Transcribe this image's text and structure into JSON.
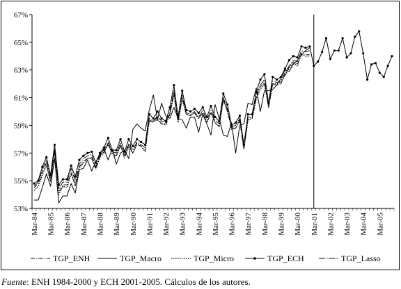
{
  "chart_data": {
    "type": "line",
    "title": "",
    "xlabel": "",
    "ylabel": "",
    "ylim": [
      53,
      67
    ],
    "y_ticks": [
      "53%",
      "55%",
      "57%",
      "59%",
      "61%",
      "63%",
      "65%",
      "67%"
    ],
    "y_tick_values": [
      53,
      55,
      57,
      59,
      61,
      63,
      65,
      67
    ],
    "x_tick_labels": [
      "Mar-84",
      "Mar-85",
      "Mar-86",
      "Mar-87",
      "Mar-88",
      "Mar-89",
      "Mar-90",
      "Mar-91",
      "Mar-92",
      "Mar-93",
      "Mar-94",
      "Mar-95",
      "Mar-96",
      "Mar-97",
      "Mar-98",
      "Mar-99",
      "Mar-00",
      "Mar-01",
      "Mar-02",
      "Mar-03",
      "Mar-04",
      "Mar-05"
    ],
    "x_unit": "quarter",
    "x_start": "Mar-84",
    "n_periods": 88,
    "vertical_marker_at": "Mar-01",
    "grid": false,
    "legend_position": "bottom",
    "legend": [
      "TGP_ENH",
      "TGP_Macro",
      "TGP_Micro",
      "TGP_ECH",
      "TGP_Lasso"
    ],
    "series": [
      {
        "name": "TGP_ENH",
        "line_style": "dash-dot",
        "start_index": 0,
        "values": [
          54.5,
          54.8,
          55.6,
          56.3,
          55.0,
          57.2,
          54.2,
          54.7,
          54.7,
          55.6,
          54.7,
          56.0,
          56.4,
          56.6,
          56.7,
          55.8,
          56.7,
          57.0,
          57.7,
          56.9,
          56.8,
          57.6,
          56.6,
          57.6,
          57.0,
          57.6,
          57.5,
          57.2,
          59.4,
          59.2,
          59.6,
          59.1,
          59.0,
          59.8,
          61.3,
          59.3,
          61.0,
          59.8,
          59.7,
          59.9,
          59.5,
          59.9,
          59.2,
          59.9,
          59.2,
          58.9,
          60.9,
          60.1,
          58.7,
          58.8,
          59.3,
          57.3,
          59.4,
          59.5,
          61.0,
          61.8,
          62.1,
          60.3,
          62.0,
          61.9,
          62.0,
          62.7,
          63.2,
          63.6,
          63.4,
          64.2,
          64.1,
          64.1
        ]
      },
      {
        "name": "TGP_Macro",
        "line_style": "solid",
        "start_index": 0,
        "values": [
          53.6,
          53.6,
          54.5,
          55.5,
          54.6,
          56.6,
          53.4,
          53.9,
          53.9,
          54.8,
          54.1,
          55.8,
          55.9,
          56.5,
          55.7,
          56.4,
          56.8,
          57.3,
          56.5,
          57.3,
          56.2,
          57.0,
          57.2,
          56.6,
          58.7,
          59.1,
          58.8,
          58.6,
          60.1,
          61.2,
          59.4,
          60.6,
          59.7,
          59.5,
          60.3,
          59.5,
          59.4,
          58.8,
          59.6,
          59.6,
          58.5,
          59.8,
          59.1,
          58.3,
          60.5,
          59.5,
          58.3,
          58.2,
          59.2,
          57.0,
          59.0,
          59.1,
          60.6,
          60.5,
          61.7,
          60.0,
          61.5,
          61.5,
          61.6,
          61.9,
          62.4,
          63.0,
          62.9,
          63.4,
          63.7,
          64.1,
          64.4,
          64.6
        ]
      },
      {
        "name": "TGP_Micro",
        "line_style": "dotted",
        "start_index": 0,
        "values": [
          54.3,
          54.6,
          55.4,
          56.1,
          54.9,
          57.1,
          54.0,
          54.6,
          54.5,
          55.5,
          54.6,
          55.9,
          56.3,
          56.6,
          56.6,
          55.9,
          56.7,
          57.1,
          57.6,
          57.0,
          56.8,
          57.5,
          56.8,
          57.4,
          57.0,
          57.7,
          57.5,
          57.1,
          59.3,
          59.3,
          59.4,
          59.1,
          59.1,
          59.8,
          61.2,
          59.2,
          60.9,
          59.8,
          59.7,
          59.9,
          59.5,
          59.9,
          59.2,
          59.9,
          59.2,
          58.9,
          60.8,
          60.0,
          58.8,
          58.8,
          59.4,
          57.3,
          59.4,
          59.5,
          60.9,
          61.6,
          62.0,
          60.3,
          62.0,
          62.0,
          62.1,
          62.6,
          63.1,
          63.5,
          63.3,
          64.1,
          64.0,
          64.0
        ]
      },
      {
        "name": "TGP_ECH",
        "line_style": "solid-markers",
        "start_index": 0,
        "values": [
          54.8,
          55.0,
          56.0,
          56.7,
          55.4,
          57.6,
          54.7,
          55.1,
          55.1,
          56.1,
          55.3,
          56.5,
          56.8,
          57.0,
          57.1,
          56.3,
          57.0,
          57.4,
          58.1,
          57.2,
          57.2,
          58.0,
          57.1,
          58.0,
          57.5,
          58.0,
          57.8,
          57.6,
          59.8,
          59.5,
          60.0,
          59.5,
          59.3,
          60.3,
          61.9,
          59.6,
          61.5,
          60.1,
          60.0,
          60.2,
          59.9,
          60.3,
          59.6,
          60.4,
          59.6,
          59.3,
          61.3,
          60.5,
          59.0,
          59.2,
          59.7,
          57.6,
          59.8,
          59.8,
          61.4,
          62.3,
          62.7,
          60.6,
          62.5,
          62.3,
          62.5,
          63.1,
          63.7,
          64.0,
          63.9,
          64.7,
          64.6,
          64.7,
          63.3,
          63.6,
          64.3,
          65.3,
          63.8,
          64.4,
          64.4,
          65.3,
          63.9,
          64.2,
          65.4,
          65.8,
          64.2,
          62.3,
          63.4,
          63.5,
          62.8,
          62.5,
          63.3,
          64.0
        ]
      },
      {
        "name": "TGP_Lasso",
        "line_style": "long-dash-dot",
        "start_index": 0,
        "values": [
          54.6,
          54.9,
          55.8,
          56.5,
          55.2,
          57.3,
          54.4,
          54.9,
          54.9,
          55.9,
          55.0,
          56.2,
          56.6,
          56.8,
          56.9,
          56.0,
          56.9,
          57.2,
          57.8,
          57.1,
          57.0,
          57.7,
          56.9,
          57.7,
          57.2,
          57.8,
          57.6,
          57.4,
          59.5,
          59.3,
          59.7,
          59.3,
          59.2,
          60.0,
          61.5,
          59.4,
          61.2,
          59.9,
          59.8,
          60.0,
          59.6,
          60.1,
          59.4,
          60.1,
          59.4,
          59.1,
          61.0,
          60.2,
          58.9,
          59.0,
          59.5,
          57.4,
          59.6,
          59.6,
          61.2,
          61.9,
          62.3,
          60.4,
          62.2,
          62.1,
          62.2,
          62.8,
          63.3,
          63.7,
          63.6,
          64.4,
          64.3,
          64.4
        ]
      }
    ]
  },
  "source_note": {
    "label": "Fuente",
    "text": ": ENH 1984-2000 y ECH 2001-2005. Cálculos de los autores."
  }
}
